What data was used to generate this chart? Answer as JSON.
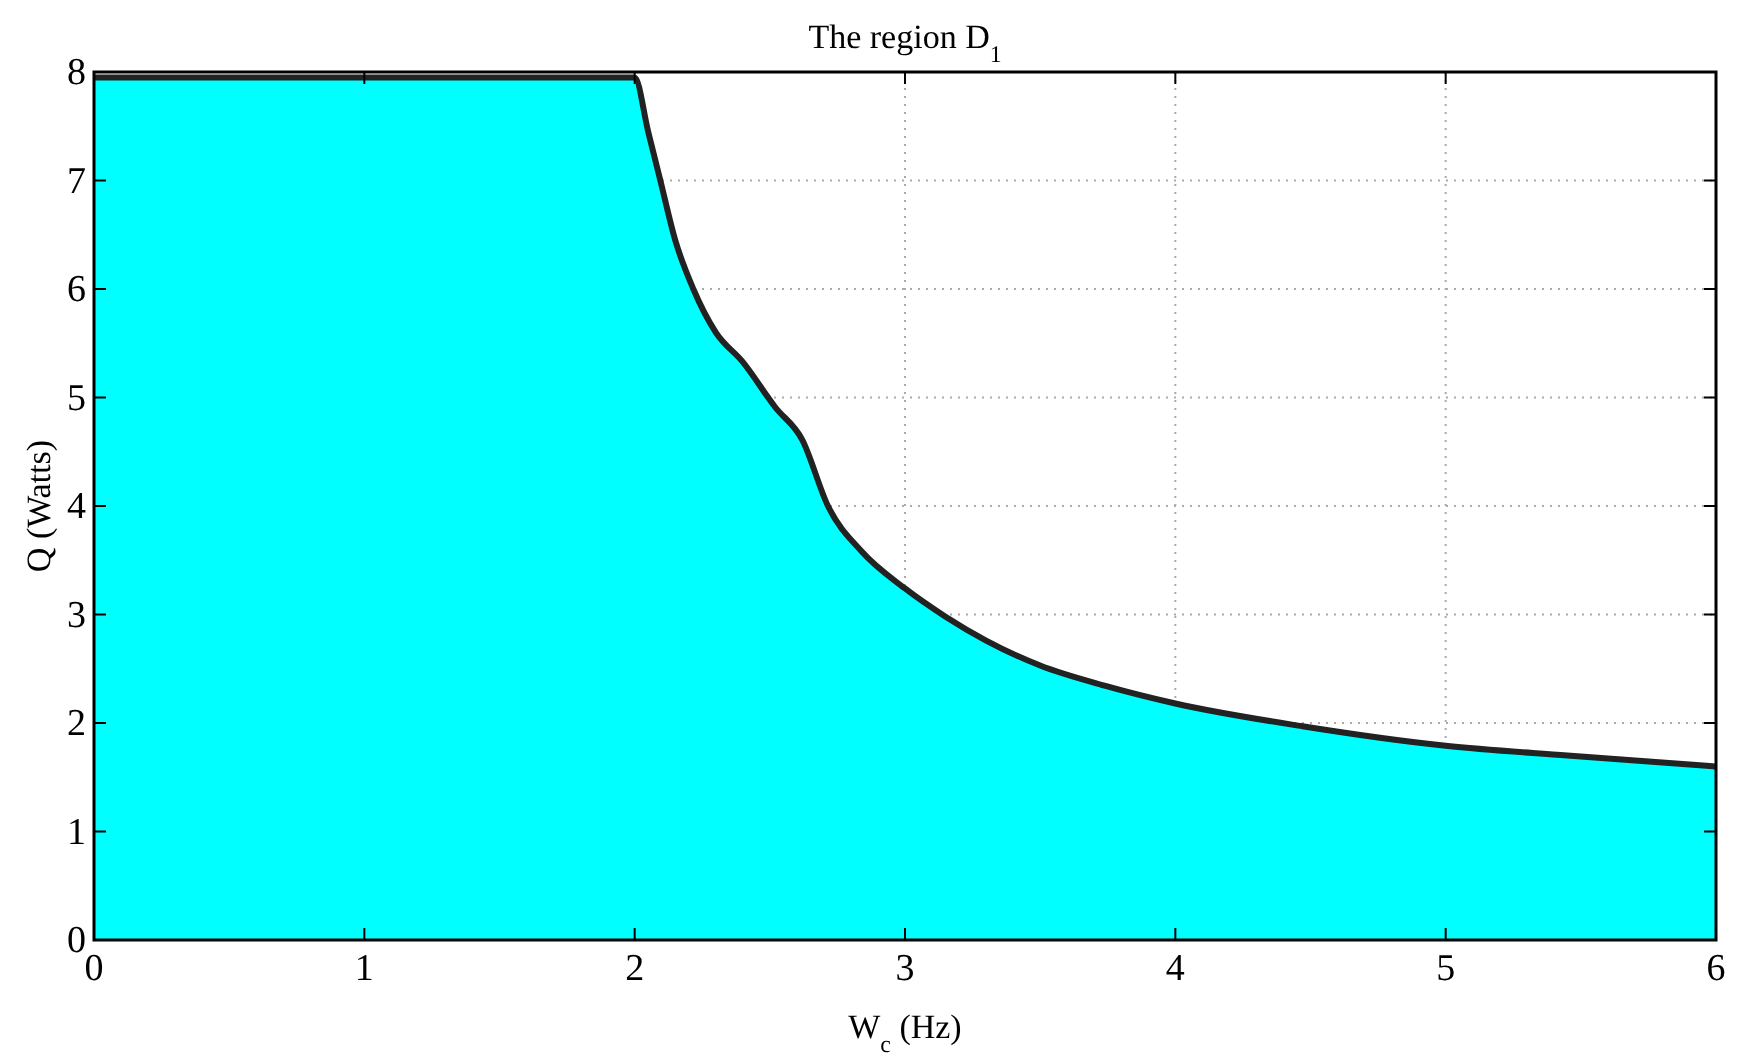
{
  "chart_data": {
    "type": "area",
    "title": "The region $_{}$D$_{1}$",
    "xlabel": "$_{}$W$_{c}$ (Hz)",
    "ylabel": "Q (Watts)",
    "x": [
      0,
      2,
      2.05,
      2.095,
      2.15,
      2.217,
      2.3,
      2.399,
      2.52,
      2.62,
      2.715,
      2.84,
      3.0,
      3.15,
      3.3,
      3.5,
      3.745,
      4,
      4.47,
      5,
      5.45,
      6
    ],
    "series": [
      {
        "color": "#00ffff",
        "values": [
          7.95,
          7.95,
          7.45,
          7,
          6.45,
          6,
          5.6,
          5.33,
          4.91,
          4.61,
          4,
          3.58,
          3.24,
          2.98,
          2.76,
          2.53,
          2.34,
          2.18,
          1.97,
          1.79,
          1.7,
          1.6
        ]
      }
    ],
    "xlim": [
      0,
      6
    ],
    "xticks": [
      0,
      1,
      2,
      3,
      4,
      5,
      6
    ],
    "ylim": [
      0,
      8
    ],
    "yticks": [
      0,
      1,
      2,
      3,
      4,
      5,
      6,
      7,
      8
    ],
    "grid": true
  }
}
